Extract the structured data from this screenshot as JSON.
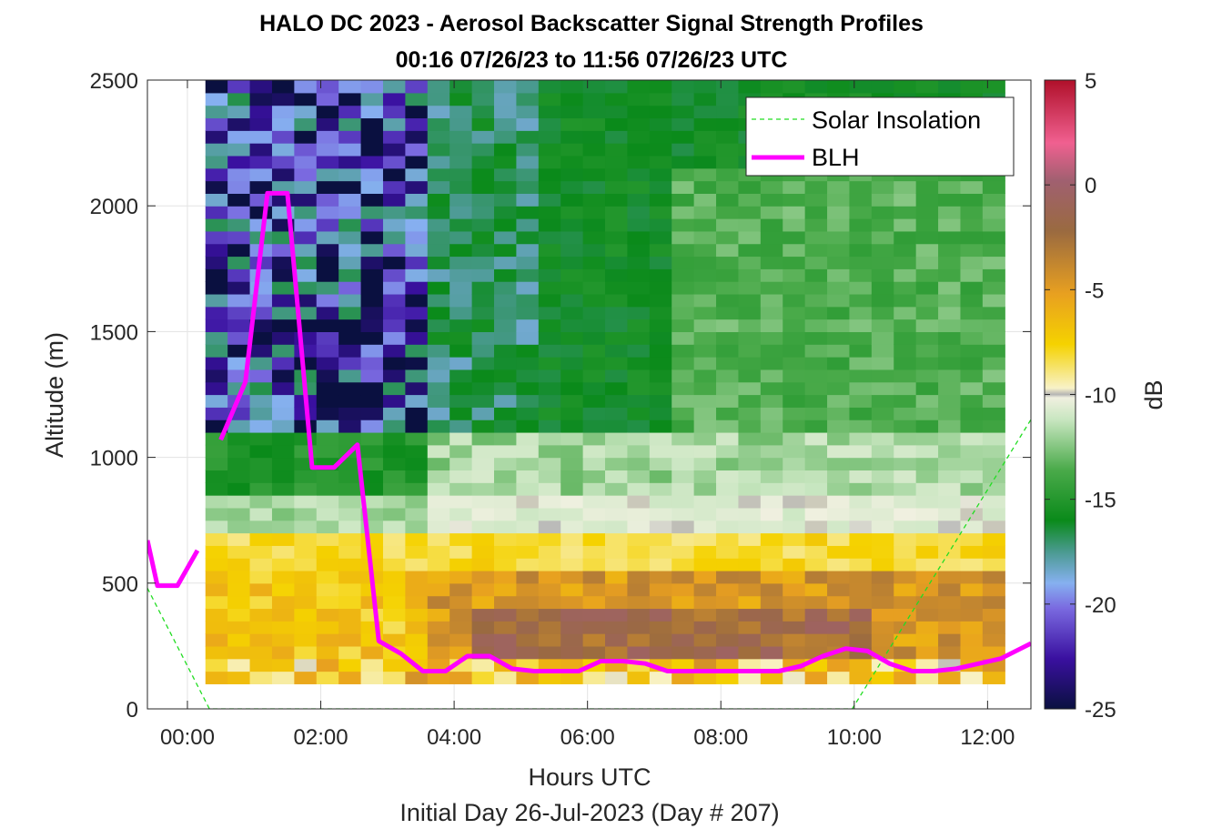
{
  "chart_data": {
    "type": "heatmap",
    "title": "HALO DC 2023 - Aerosol Backscatter Signal Strength Profiles",
    "subtitle": "00:16 07/26/23 to 11:56 07/26/23  UTC",
    "xlabel": "Hours UTC",
    "xlabel2": "Initial Day 26-Jul-2023 (Day # 207)",
    "ylabel": "Altitude (m)",
    "colorbar_label": "dB",
    "xlim": [
      -0.6,
      12.65
    ],
    "ylim": [
      0,
      2500
    ],
    "clim": [
      -25,
      5
    ],
    "x_ticks": [
      0,
      2,
      4,
      6,
      8,
      10,
      12
    ],
    "x_tick_labels": [
      "00:00",
      "02:00",
      "04:00",
      "06:00",
      "08:00",
      "10:00",
      "12:00"
    ],
    "y_ticks": [
      0,
      500,
      1000,
      1500,
      2000,
      2500
    ],
    "y_tick_labels": [
      "0",
      "500",
      "1000",
      "1500",
      "2000",
      "2500"
    ],
    "colorbar_ticks": [
      -25,
      -20,
      -15,
      -10,
      -5,
      0,
      5
    ],
    "colorbar_tick_labels": [
      "-25",
      "-20",
      "-15",
      "-10",
      "-5",
      "0",
      "5"
    ],
    "grid": true,
    "legend_position": "top-right",
    "heatmap": {
      "x_start": 0.27,
      "x_step": 0.333,
      "columns": 36,
      "y_start": 100,
      "y_step": 50,
      "rows": 48,
      "value_description": "backscatter signal strength in dB"
    },
    "series": [
      {
        "name": "Solar Insolation",
        "style": "green-dashed",
        "x": [
          -0.6,
          0.33,
          9.97,
          12.65
        ],
        "y": [
          480,
          0,
          0,
          1150
        ]
      },
      {
        "name": "BLH",
        "style": "magenta-solid",
        "segments": [
          {
            "x": [
              -0.6,
              -0.45,
              -0.15,
              0.15
            ],
            "y": [
              670,
              490,
              490,
              630
            ]
          },
          {
            "x": [
              0.5,
              0.87,
              1.2,
              1.5,
              1.87,
              2.2,
              2.55,
              2.87,
              3.2,
              3.53,
              3.87,
              4.2,
              4.53,
              4.87,
              5.2,
              5.53,
              5.87,
              6.2,
              6.53,
              6.87,
              7.2,
              7.53,
              7.87,
              8.2,
              8.53,
              8.87,
              9.2,
              9.53,
              9.87,
              10.2,
              10.53,
              10.87,
              11.2,
              11.53,
              11.87,
              12.2,
              12.65
            ],
            "y": [
              1070,
              1300,
              2050,
              2050,
              960,
              960,
              1050,
              270,
              220,
              150,
              150,
              210,
              210,
              160,
              150,
              150,
              150,
              190,
              190,
              180,
              150,
              150,
              150,
              150,
              150,
              150,
              170,
              210,
              240,
              230,
              180,
              150,
              150,
              160,
              180,
              200,
              260
            ]
          }
        ]
      }
    ]
  }
}
